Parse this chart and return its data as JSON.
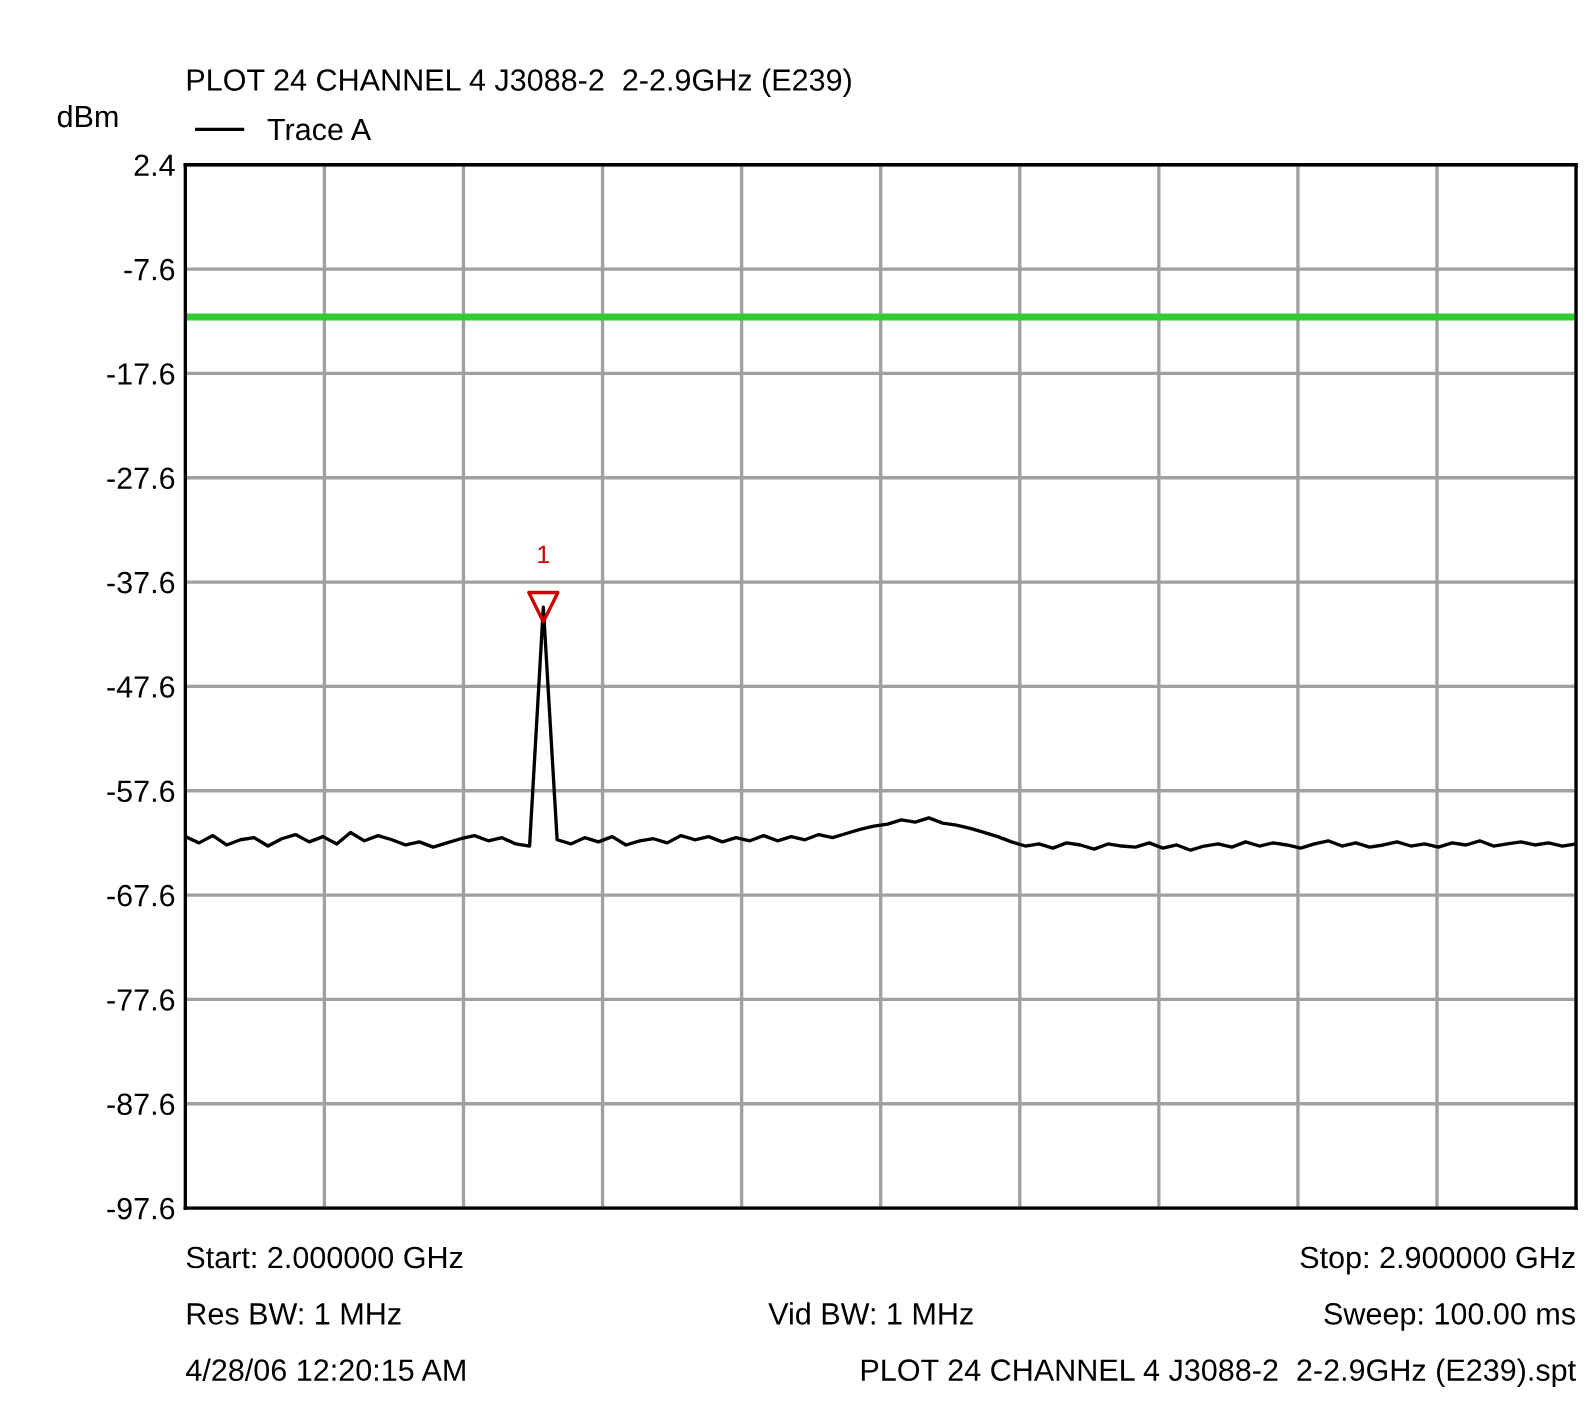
{
  "chart_data": {
    "type": "line",
    "title": "PLOT 24 CHANNEL 4 J3088-2  2-2.9GHz (E239)",
    "ylabel": "dBm",
    "categories": [
      null,
      null,
      null,
      null,
      null,
      null,
      null,
      null,
      null,
      null,
      null,
      null,
      null,
      null,
      null,
      null,
      null,
      null,
      null,
      null,
      null,
      null,
      null,
      null,
      null,
      null,
      null,
      null,
      null,
      null,
      null,
      null,
      null,
      null,
      null,
      null,
      null,
      null,
      null,
      null,
      null,
      null,
      null,
      null,
      null,
      null,
      null,
      null,
      null,
      null,
      null,
      null,
      null,
      null,
      null,
      null,
      null,
      null,
      null,
      null,
      null,
      null,
      null,
      null,
      null,
      null,
      null,
      null,
      null,
      null,
      null,
      null,
      null,
      null,
      null,
      null,
      null,
      null,
      null,
      null,
      null,
      null,
      null,
      null,
      null,
      null,
      null,
      null,
      null,
      null,
      null,
      null,
      null,
      null,
      null,
      null,
      null,
      null,
      null,
      null,
      null,
      null
    ],
    "ylim": [
      -97.6,
      2.4
    ],
    "yticks": [
      2.4,
      -7.6,
      -17.6,
      -27.6,
      -37.6,
      -47.6,
      -57.6,
      -67.6,
      -77.6,
      -87.6,
      -97.6
    ],
    "tick_labels": "y",
    "grid": true,
    "legend": "top left",
    "marker": "none",
    "line_style": "solid",
    "series": [
      {
        "name": "Trace A",
        "color": "#000000",
        "values": [
          -62.0,
          -62.6,
          -61.9,
          -62.8,
          -62.3,
          -62.1,
          -62.9,
          -62.2,
          -61.8,
          -62.5,
          -62.0,
          -62.7,
          -61.6,
          -62.4,
          -61.9,
          -62.3,
          -62.8,
          -62.5,
          -63.0,
          -62.6,
          -62.2,
          -61.9,
          -62.4,
          -62.1,
          -62.7,
          -62.9,
          -40,
          -62.3,
          -62.7,
          -62.1,
          -62.5,
          -62.0,
          -62.8,
          -62.4,
          -62.2,
          -62.6,
          -61.9,
          -62.3,
          -62.0,
          -62.5,
          -62.1,
          -62.4,
          -61.9,
          -62.4,
          -62.0,
          -62.3,
          -61.8,
          -62.1,
          -61.7,
          -61.3,
          -61.0,
          -60.8,
          -60.4,
          -60.6,
          -60.2,
          -60.7,
          -60.9,
          -61.2,
          -61.6,
          -62.0,
          -62.5,
          -62.9,
          -62.7,
          -63.1,
          -62.6,
          -62.8,
          -63.2,
          -62.7,
          -62.9,
          -63.0,
          -62.6,
          -63.1,
          -62.8,
          -63.3,
          -62.9,
          -62.7,
          -63.0,
          -62.5,
          -62.9,
          -62.6,
          -62.8,
          -63.1,
          -62.7,
          -62.4,
          -62.9,
          -62.6,
          -63.0,
          -62.8,
          -62.5,
          -62.9,
          -62.7,
          -63.0,
          -62.6,
          -62.8,
          -62.4,
          -62.9,
          -62.7,
          -62.5,
          -62.8,
          -62.6,
          -62.9,
          -62.7
        ]
      }
    ],
    "ref_lines": [
      {
        "axis": "y",
        "value": -12.2,
        "color": "#33cc33",
        "line_style": "solid"
      }
    ],
    "annotations": [
      {
        "text": "1",
        "y": -40
      },
      "Start: 2.000000 GHz",
      "Stop: 2.900000 GHz",
      "Res BW: 1 MHz",
      "Vid BW: 1 MHz",
      "Sweep: 100.00 ms",
      "4/28/06 12:20:15 AM",
      "PLOT 24 CHANNEL 4 J3088-2  2-2.9GHz (E239).spt"
    ]
  }
}
